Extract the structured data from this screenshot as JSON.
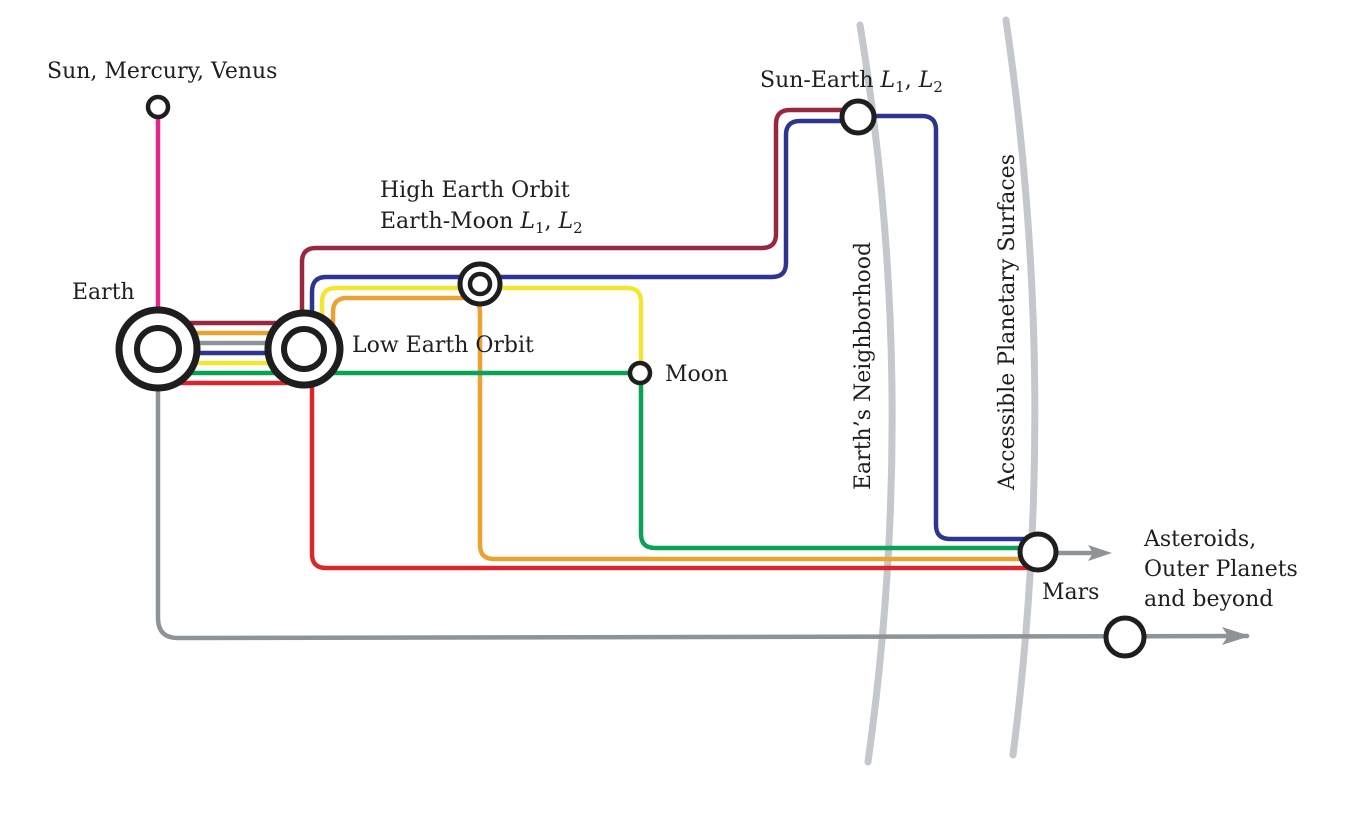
{
  "labels": {
    "sun_mercury_venus": "Sun, Mercury, Venus",
    "earth": "Earth",
    "low_earth_orbit": "Low Earth Orbit",
    "high_earth_orbit_line1": "High Earth Orbit",
    "high_earth_orbit_line2_prefix": "Earth-Moon ",
    "sun_earth_prefix": "Sun-Earth ",
    "lagrange_L": "L",
    "lagrange_sub1": "1",
    "lagrange_sep": ", ",
    "lagrange_sub2": "2",
    "moon": "Moon",
    "mars": "Mars",
    "earths_neighborhood": "Earth’s Neighborhood",
    "accessible_planetary_surfaces": "Accessible Planetary Surfaces",
    "outer_line1": "Asteroids,",
    "outer_line2": "Outer Planets",
    "outer_line3": "and beyond"
  },
  "colors": {
    "magenta": "#e3268f",
    "maroon": "#9a2740",
    "navy": "#2e3590",
    "yellow": "#f2e534",
    "orange": "#e8a331",
    "green": "#0aa257",
    "red": "#d8282e",
    "gray": "#8e9398",
    "boundary": "#c4c7cb",
    "node_stroke": "#1e1e1e"
  }
}
